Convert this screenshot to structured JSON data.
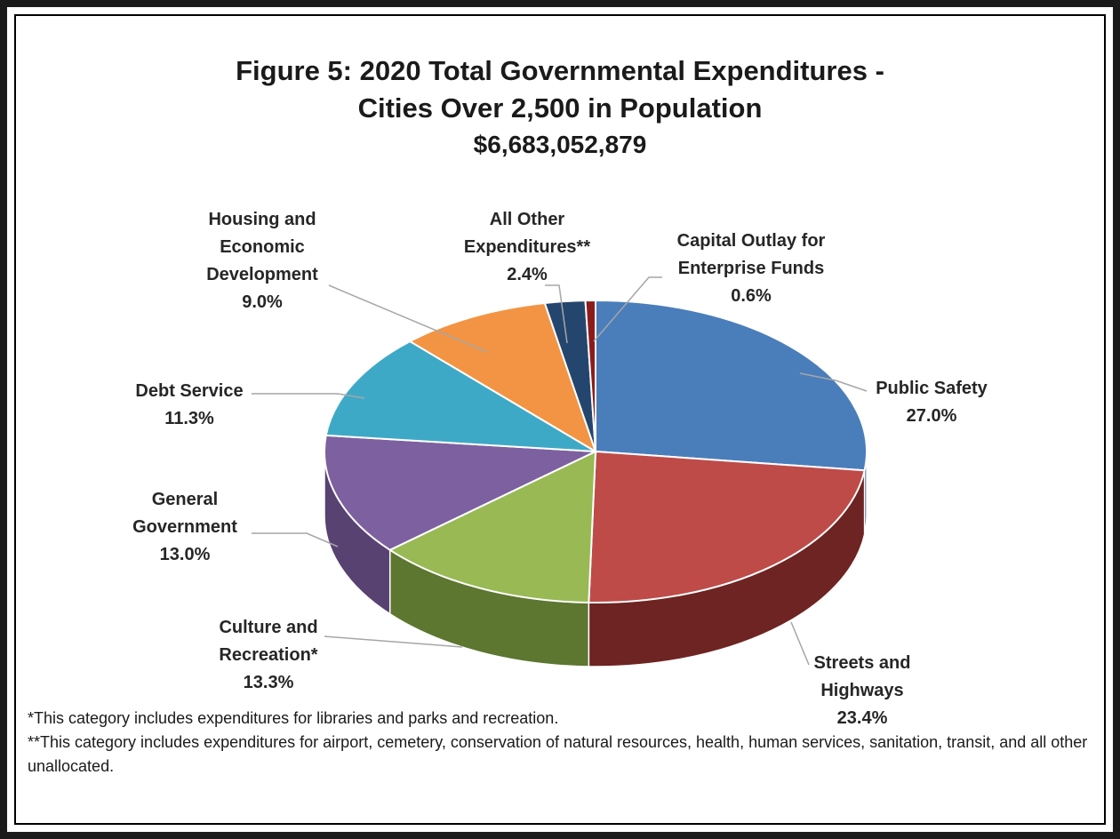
{
  "title_line1": "Figure 5:  2020 Total Governmental Expenditures -",
  "title_line2": "Cities Over 2,500 in Population",
  "total": "$6,683,052,879",
  "chart_data": {
    "type": "pie",
    "title": "Figure 5:  2020 Total Governmental Expenditures - Cities Over 2,500 in Population",
    "subtitle": "$6,683,052,879",
    "slices": [
      {
        "label": [
          "Public Safety"
        ],
        "value": 27.0,
        "pct": "27.0%",
        "color": "#4A7EBB",
        "side": "#2C4C73"
      },
      {
        "label": [
          "Streets and",
          "Highways"
        ],
        "value": 23.4,
        "pct": "23.4%",
        "color": "#BE4B48",
        "side": "#6E2422"
      },
      {
        "label": [
          "Culture and",
          "Recreation*"
        ],
        "value": 13.3,
        "pct": "13.3%",
        "color": "#98B954",
        "side": "#5D7630"
      },
      {
        "label": [
          "General",
          "Government"
        ],
        "value": 13.0,
        "pct": "13.0%",
        "color": "#7D60A0",
        "side": "#574272"
      },
      {
        "label": [
          "Debt Service"
        ],
        "value": 11.3,
        "pct": "11.3%",
        "color": "#3EA9C6",
        "side": "#26748A"
      },
      {
        "label": [
          "Housing and",
          "Economic",
          "Development"
        ],
        "value": 9.0,
        "pct": "9.0%",
        "color": "#F29443",
        "side": "#A85F22"
      },
      {
        "label": [
          "All Other",
          "Expenditures**"
        ],
        "value": 2.4,
        "pct": "2.4%",
        "color": "#24466E",
        "side": "#162C47"
      },
      {
        "label": [
          "Capital Outlay for",
          "Enterprise Funds"
        ],
        "value": 0.6,
        "pct": "0.6%",
        "color": "#8C1C1C",
        "side": "#5A1010"
      }
    ]
  },
  "notes": [
    "*This category includes expenditures for libraries and parks and recreation.",
    "**This category includes expenditures for airport, cemetery, conservation of natural resources, health, human services, sanitation, transit, and all other unallocated."
  ]
}
